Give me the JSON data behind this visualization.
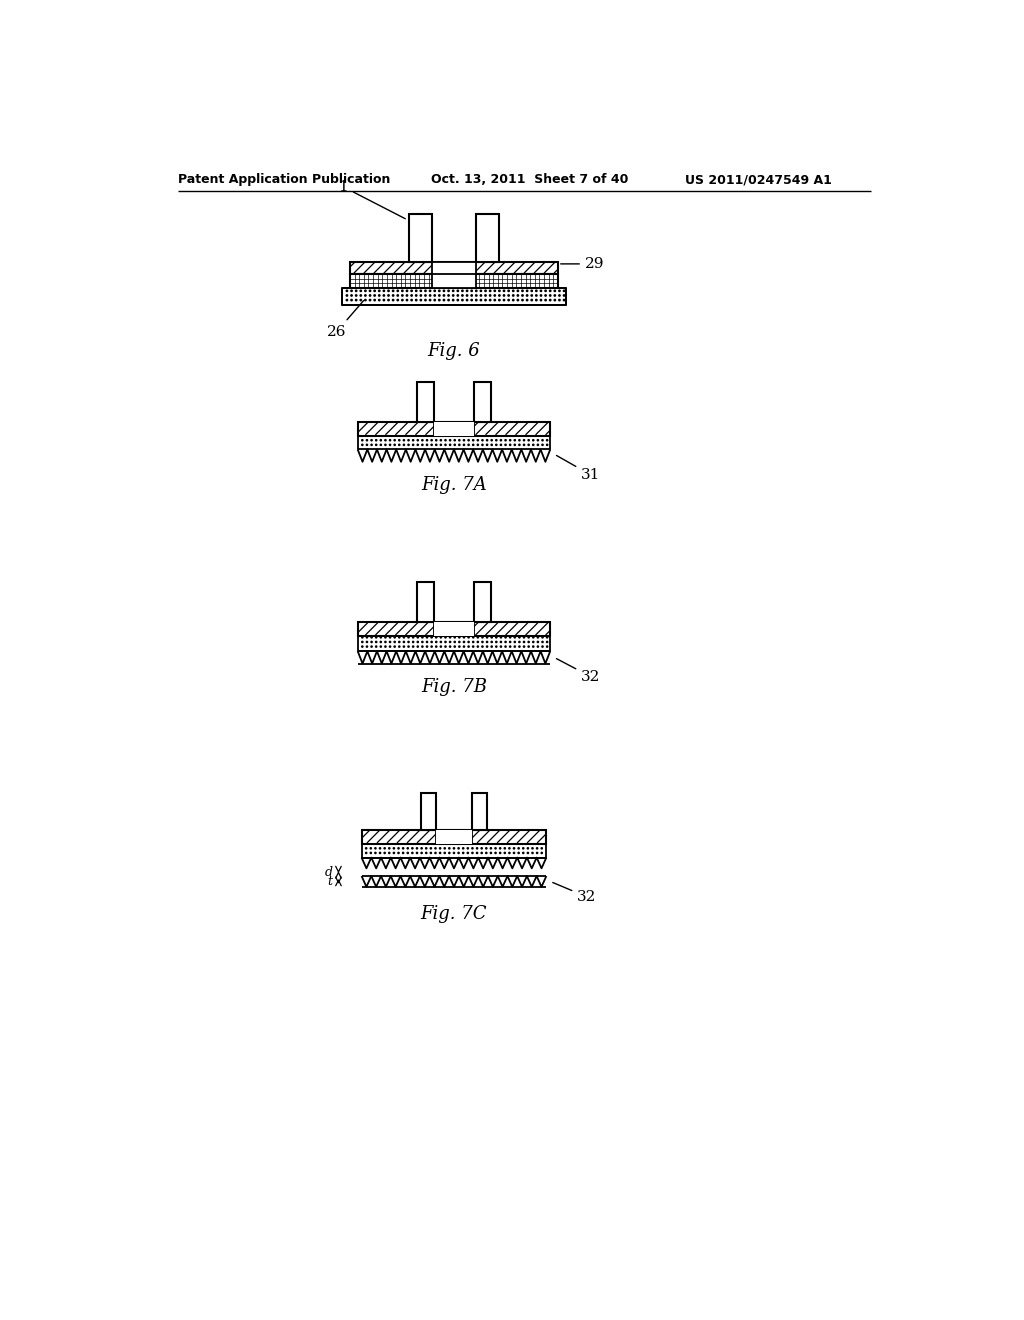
{
  "bg_color": "#ffffff",
  "header_left": "Patent Application Publication",
  "header_mid": "Oct. 13, 2011  Sheet 7 of 40",
  "header_right": "US 2011/0247549 A1",
  "fig6_label": "Fig. 6",
  "fig7a_label": "Fig. 7A",
  "fig7b_label": "Fig. 7B",
  "fig7c_label": "Fig. 7C",
  "line_color": "#000000"
}
